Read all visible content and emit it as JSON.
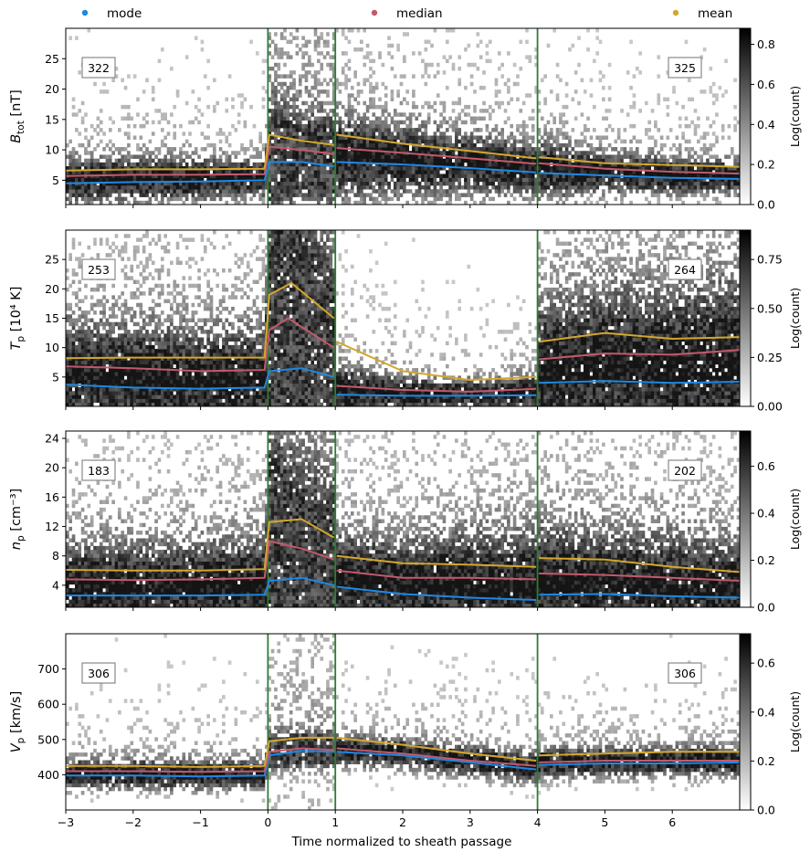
{
  "legend": [
    {
      "label": "mode",
      "color": "#1e88e5"
    },
    {
      "label": "median",
      "color": "#c4596b"
    },
    {
      "label": "mean",
      "color": "#d4a72c"
    }
  ],
  "xlabel": "Time normalized to sheath passage",
  "x_ticks": [
    -3,
    -2,
    -1,
    0,
    1,
    2,
    3,
    4,
    5,
    6
  ],
  "xlim": [
    -3,
    7
  ],
  "boundaries": [
    0,
    1,
    4
  ],
  "boundary_color": "#2e7d32",
  "colorbar_label": "Log(count)",
  "chart_data": [
    {
      "type": "heatmap",
      "ylabel_main": "B",
      "ylabel_sub": "tot",
      "ylabel_unit": " [nT]",
      "ylim": [
        1,
        30
      ],
      "y_ticks": [
        5,
        10,
        15,
        20,
        25
      ],
      "count_left": "322",
      "count_right": "325",
      "cbar_max": 0.88,
      "cbar_ticks": [
        "0.0",
        "0.2",
        "0.4",
        "0.6",
        "0.8"
      ],
      "cbar_tick_values": [
        0,
        0.2,
        0.4,
        0.6,
        0.8
      ],
      "series": [
        {
          "name": "mode",
          "x": [
            -3,
            -2,
            -1,
            -0.05,
            0.02,
            0.5,
            0.98,
            1.02,
            2,
            3,
            3.98,
            4.02,
            5,
            6,
            7
          ],
          "y": [
            4.5,
            4.7,
            4.8,
            5.0,
            8.0,
            8.0,
            7.3,
            8.0,
            7.6,
            7.0,
            6.3,
            6.2,
            5.8,
            5.4,
            5.2
          ]
        },
        {
          "name": "median",
          "x": [
            -3,
            -2,
            -1,
            -0.05,
            0.02,
            0.5,
            0.98,
            1.02,
            2,
            3,
            3.98,
            4.02,
            5,
            6,
            7
          ],
          "y": [
            5.7,
            5.9,
            5.9,
            6.0,
            10.5,
            10.0,
            9.3,
            10.3,
            9.5,
            8.6,
            7.7,
            7.8,
            6.9,
            6.4,
            6.1
          ]
        },
        {
          "name": "mean",
          "x": [
            -3,
            -2,
            -1,
            -0.05,
            0.02,
            0.5,
            0.98,
            1.02,
            2,
            3,
            3.98,
            4.02,
            5,
            6,
            7
          ],
          "y": [
            6.6,
            6.8,
            6.8,
            6.9,
            12.5,
            11.5,
            10.8,
            12.5,
            11.0,
            9.8,
            8.6,
            8.8,
            7.8,
            7.5,
            7.2
          ]
        }
      ]
    },
    {
      "type": "heatmap",
      "ylabel_main": "T",
      "ylabel_sub": "p",
      "ylabel_unit": " [10⁴ K]",
      "ylim": [
        0,
        30
      ],
      "y_ticks": [
        5,
        10,
        15,
        20,
        25
      ],
      "count_left": "253",
      "count_right": "264",
      "cbar_max": 0.9,
      "cbar_ticks": [
        "0.00",
        "0.25",
        "0.50",
        "0.75"
      ],
      "cbar_tick_values": [
        0,
        0.25,
        0.5,
        0.75
      ],
      "series": [
        {
          "name": "mode",
          "x": [
            -3,
            -2,
            -1,
            -0.05,
            0.02,
            0.5,
            0.98,
            1.02,
            2,
            3,
            3.98,
            4.02,
            5,
            6,
            7
          ],
          "y": [
            3.7,
            3.2,
            3.0,
            3.2,
            6.0,
            6.5,
            5.0,
            2.0,
            1.8,
            1.8,
            1.9,
            4.0,
            4.3,
            4.0,
            4.2
          ]
        },
        {
          "name": "median",
          "x": [
            -3,
            -2,
            -1,
            -0.05,
            0.02,
            0.3,
            0.98,
            1.02,
            2,
            3,
            3.98,
            4.02,
            5,
            6,
            7
          ],
          "y": [
            6.8,
            6.5,
            6.0,
            6.2,
            13.0,
            15.0,
            10.0,
            3.5,
            2.8,
            2.5,
            3.0,
            8.0,
            9.0,
            8.8,
            9.6
          ]
        },
        {
          "name": "mean",
          "x": [
            -3,
            -2,
            -1,
            -0.05,
            0.02,
            0.35,
            0.98,
            1.02,
            2,
            3,
            3.98,
            4.02,
            5,
            6,
            7
          ],
          "y": [
            8.2,
            8.3,
            8.3,
            8.3,
            19.0,
            21.0,
            15.0,
            11.0,
            6.0,
            4.5,
            5.0,
            11.0,
            12.5,
            11.5,
            11.8
          ]
        }
      ]
    },
    {
      "type": "heatmap",
      "ylabel_main": "n",
      "ylabel_sub": "p",
      "ylabel_unit": " [cm⁻³]",
      "ylim": [
        1,
        25
      ],
      "y_ticks": [
        4,
        8,
        12,
        16,
        20,
        24
      ],
      "count_left": "183",
      "count_right": "202",
      "cbar_max": 0.75,
      "cbar_ticks": [
        "0.0",
        "0.2",
        "0.4",
        "0.6"
      ],
      "cbar_tick_values": [
        0,
        0.2,
        0.4,
        0.6
      ],
      "series": [
        {
          "name": "mode",
          "x": [
            -3,
            -2,
            -1,
            -0.05,
            0.02,
            0.5,
            0.98,
            1.02,
            2,
            3,
            3.98,
            4.02,
            5,
            6,
            7
          ],
          "y": [
            2.6,
            2.6,
            2.6,
            2.7,
            4.6,
            5.0,
            4.0,
            3.8,
            2.8,
            2.3,
            2.0,
            2.7,
            2.8,
            2.5,
            2.3
          ]
        },
        {
          "name": "median",
          "x": [
            -3,
            -2,
            -1,
            -0.05,
            0.02,
            0.5,
            0.98,
            1.02,
            2,
            3,
            3.98,
            4.02,
            5,
            6,
            7
          ],
          "y": [
            4.8,
            4.7,
            4.8,
            5.0,
            10.0,
            9.0,
            7.5,
            6.0,
            5.0,
            5.0,
            4.8,
            5.6,
            5.4,
            5.0,
            4.6
          ]
        },
        {
          "name": "mean",
          "x": [
            -3,
            -2,
            -1,
            -0.05,
            0.02,
            0.5,
            0.98,
            1.02,
            2,
            3,
            3.98,
            4.02,
            5,
            6,
            7
          ],
          "y": [
            6.1,
            6.0,
            6.0,
            6.2,
            12.6,
            13.0,
            10.5,
            8.0,
            7.0,
            6.8,
            6.5,
            7.7,
            7.5,
            6.5,
            5.8
          ]
        }
      ]
    },
    {
      "type": "heatmap",
      "ylabel_main": "V",
      "ylabel_sub": "p",
      "ylabel_unit": " [km/s]",
      "ylim": [
        300,
        800
      ],
      "y_ticks": [
        400,
        500,
        600,
        700
      ],
      "count_left": "306",
      "count_right": "306",
      "cbar_max": 0.72,
      "cbar_ticks": [
        "0.0",
        "0.2",
        "0.4",
        "0.6"
      ],
      "cbar_tick_values": [
        0,
        0.2,
        0.4,
        0.6
      ],
      "series": [
        {
          "name": "mode",
          "x": [
            -3,
            -2,
            -1,
            -0.05,
            0.02,
            0.5,
            0.98,
            1.02,
            2,
            3,
            3.98,
            4.02,
            5,
            6,
            7
          ],
          "y": [
            398,
            398,
            395,
            398,
            455,
            468,
            465,
            465,
            455,
            435,
            415,
            428,
            432,
            432,
            435
          ]
        },
        {
          "name": "median",
          "x": [
            -3,
            -2,
            -1,
            -0.05,
            0.02,
            0.5,
            0.98,
            1.02,
            2,
            3,
            3.98,
            4.02,
            5,
            6,
            7
          ],
          "y": [
            410,
            410,
            408,
            410,
            465,
            475,
            470,
            475,
            460,
            440,
            425,
            435,
            440,
            440,
            440
          ]
        },
        {
          "name": "mean",
          "x": [
            -3,
            -2,
            -1,
            -0.05,
            0.02,
            0.5,
            0.98,
            1.02,
            2,
            3,
            3.98,
            4.02,
            5,
            6,
            7
          ],
          "y": [
            425,
            425,
            422,
            425,
            495,
            505,
            505,
            505,
            485,
            460,
            440,
            455,
            460,
            465,
            465
          ]
        }
      ]
    }
  ]
}
